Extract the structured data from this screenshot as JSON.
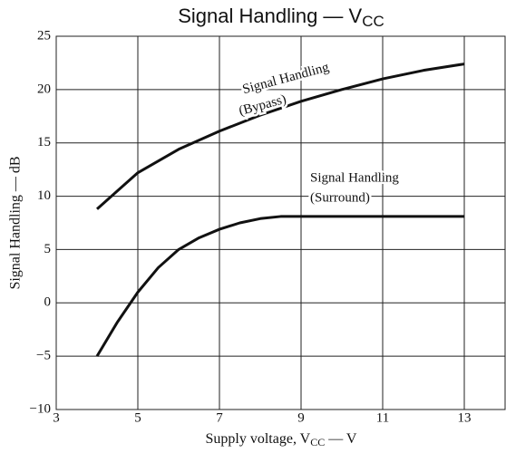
{
  "chart_data": {
    "type": "line",
    "title": {
      "text": "Signal Handling — V",
      "sub": "CC"
    },
    "x_label": {
      "text": "Supply voltage, V",
      "sub": "CC",
      "tail": " — V"
    },
    "y_label": "Signal Handling — dB",
    "xlim": [
      3,
      14
    ],
    "xticks": [
      3,
      5,
      7,
      9,
      11,
      13
    ],
    "ylim": [
      -10,
      25
    ],
    "yticks": [
      {
        "value": -10,
        "label": "−10"
      },
      {
        "value": -5,
        "label": "−5"
      },
      0,
      5,
      10,
      15,
      20,
      25
    ],
    "grid": true,
    "series": [
      {
        "label": [
          "Signal Handling",
          "(Bypass)"
        ],
        "color": "#111111",
        "x": [
          4,
          5,
          6,
          7,
          8,
          9,
          10,
          11,
          12,
          13
        ],
        "values": [
          8.8,
          12.2,
          14.4,
          16.1,
          17.6,
          18.9,
          20.0,
          21.0,
          21.8,
          22.4
        ]
      },
      {
        "label": [
          "Signal Handling",
          "(Surround)"
        ],
        "color": "#111111",
        "x": [
          4,
          4.5,
          5,
          5.5,
          6,
          6.5,
          7,
          7.5,
          8,
          8.5,
          9,
          10,
          11,
          12,
          13
        ],
        "values": [
          -5,
          -1.8,
          1.0,
          3.3,
          5.0,
          6.1,
          6.9,
          7.5,
          7.9,
          8.1,
          8.1,
          8.1,
          8.1,
          8.1,
          8.1
        ]
      }
    ]
  }
}
